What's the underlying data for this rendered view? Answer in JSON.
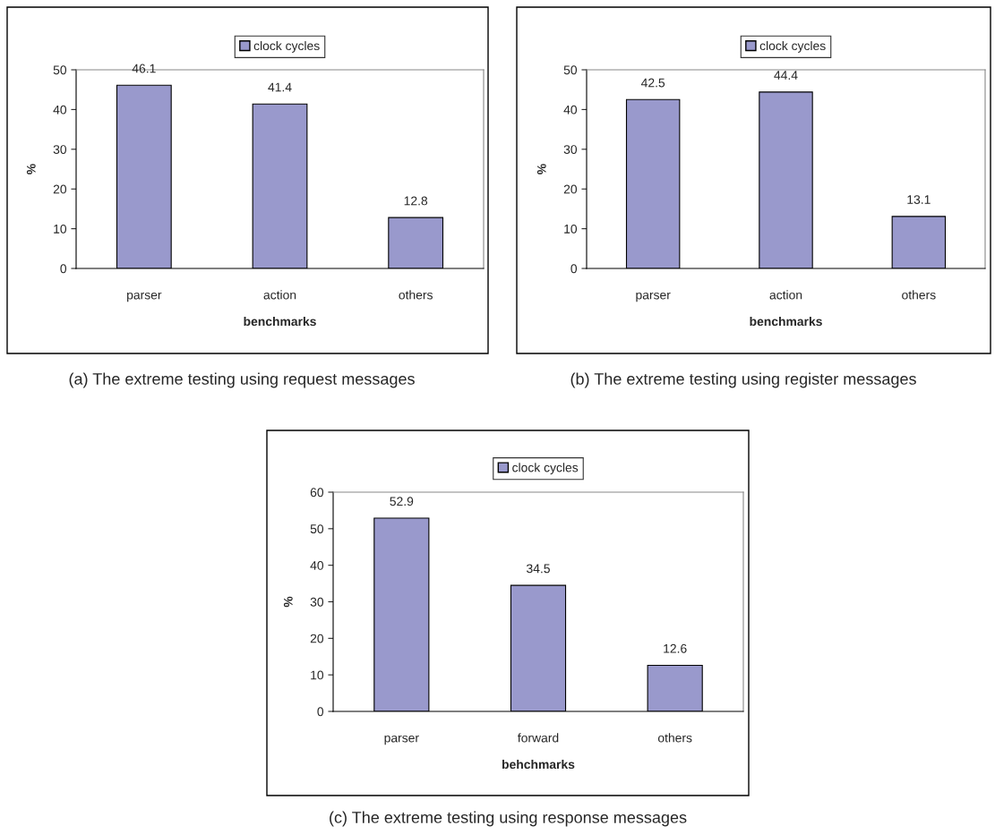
{
  "chart_data": [
    {
      "type": "bar",
      "categories": [
        "parser",
        "action",
        "others"
      ],
      "series": [
        {
          "name": "clock cycles",
          "color": "#9999cc",
          "values": [
            46.1,
            41.4,
            12.8
          ]
        }
      ],
      "ylim": [
        0,
        50
      ],
      "yticks": [
        0,
        10,
        20,
        30,
        40,
        50
      ],
      "xlabel": "benchmarks",
      "ylabel": "%",
      "legend": "top",
      "data_labels": true,
      "grid": false,
      "annotations": [
        "(a) The extreme testing using request messages"
      ]
    },
    {
      "type": "bar",
      "categories": [
        "parser",
        "action",
        "others"
      ],
      "series": [
        {
          "name": "clock cycles",
          "color": "#9999cc",
          "values": [
            42.5,
            44.4,
            13.1
          ]
        }
      ],
      "ylim": [
        0,
        50
      ],
      "yticks": [
        0,
        10,
        20,
        30,
        40,
        50
      ],
      "xlabel": "benchmarks",
      "ylabel": "%",
      "legend": "top",
      "data_labels": true,
      "grid": false,
      "annotations": [
        "(b) The extreme testing using register messages"
      ]
    },
    {
      "type": "bar",
      "categories": [
        "parser",
        "forward",
        "others"
      ],
      "series": [
        {
          "name": "clock cycles",
          "color": "#9999cc",
          "values": [
            52.9,
            34.5,
            12.6
          ]
        }
      ],
      "ylim": [
        0,
        60
      ],
      "yticks": [
        0,
        10,
        20,
        30,
        40,
        50,
        60
      ],
      "xlabel": "behchmarks",
      "ylabel": "%",
      "legend": "top",
      "data_labels": true,
      "grid": false,
      "annotations": [
        "(c) The extreme testing using response messages"
      ]
    }
  ]
}
